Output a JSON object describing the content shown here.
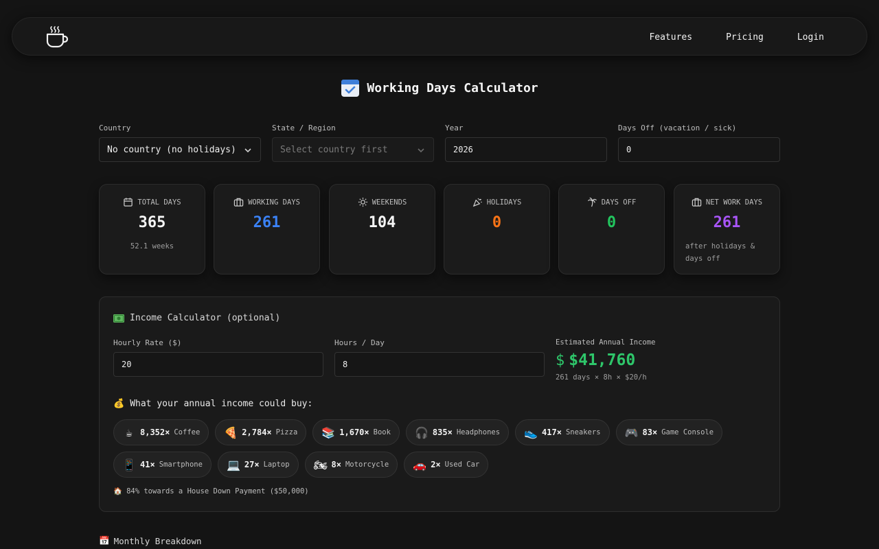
{
  "nav": {
    "logo_icon": "coffee-cup-icon",
    "links": [
      "Features",
      "Pricing",
      "Login"
    ]
  },
  "title": {
    "icon": "calendar-check-icon",
    "text": "Working Days Calculator"
  },
  "filters": {
    "country": {
      "label": "Country",
      "value": "No country (no holidays)"
    },
    "state": {
      "label": "State / Region",
      "placeholder": "Select country first"
    },
    "year": {
      "label": "Year",
      "value": "2026"
    },
    "days_off": {
      "label": "Days Off (vacation / sick)",
      "value": "0"
    }
  },
  "stats": [
    {
      "label": "TOTAL DAYS",
      "value": "365",
      "sub": "52.1 weeks",
      "icon": "calendar-icon",
      "color": "#f5f5f5"
    },
    {
      "label": "WORKING DAYS",
      "value": "261",
      "sub": "",
      "icon": "briefcase-icon",
      "color": "#3b82f6"
    },
    {
      "label": "WEEKENDS",
      "value": "104",
      "sub": "",
      "icon": "sun-icon",
      "color": "#f5f5f5"
    },
    {
      "label": "HOLIDAYS",
      "value": "0",
      "sub": "",
      "icon": "party-popper-icon",
      "color": "#f97316"
    },
    {
      "label": "DAYS OFF",
      "value": "0",
      "sub": "",
      "icon": "palm-tree-icon",
      "color": "#22c55e"
    },
    {
      "label": "NET WORK DAYS",
      "value": "261",
      "sub": "after holidays & days off",
      "icon": "briefcase-icon",
      "color": "#a855f7"
    }
  ],
  "income": {
    "title": "Income Calculator (optional)",
    "title_icon": "money-icon",
    "hourly_rate": {
      "label": "Hourly Rate ($)",
      "value": "20"
    },
    "hours_per_day": {
      "label": "Hours / Day",
      "value": "8"
    },
    "estimate": {
      "label": "Estimated Annual Income",
      "symbol": "$",
      "value": "$41,760",
      "formula": "261 days × 8h × $20/h",
      "color": "#2ec66a"
    },
    "buy_title": "What your annual income could buy:",
    "buy_icon": "money-bag-icon",
    "items": [
      {
        "emoji": "☕",
        "count": "8,352×",
        "label": "Coffee"
      },
      {
        "emoji": "🍕",
        "count": "2,784×",
        "label": "Pizza"
      },
      {
        "emoji": "📚",
        "count": "1,670×",
        "label": "Book"
      },
      {
        "emoji": "🎧",
        "count": "835×",
        "label": "Headphones"
      },
      {
        "emoji": "👟",
        "count": "417×",
        "label": "Sneakers"
      },
      {
        "emoji": "🎮",
        "count": "83×",
        "label": "Game Console"
      },
      {
        "emoji": "📱",
        "count": "41×",
        "label": "Smartphone"
      },
      {
        "emoji": "💻",
        "count": "27×",
        "label": "Laptop"
      },
      {
        "emoji": "🏍",
        "count": "8×",
        "label": "Motorcycle"
      },
      {
        "emoji": "🚗",
        "count": "2×",
        "label": "Used Car"
      }
    ],
    "house": {
      "emoji": "🏠",
      "text": "84% towards a House Down Payment ($50,000)"
    }
  },
  "monthly": {
    "emoji": "📅",
    "title": "Monthly Breakdown"
  }
}
